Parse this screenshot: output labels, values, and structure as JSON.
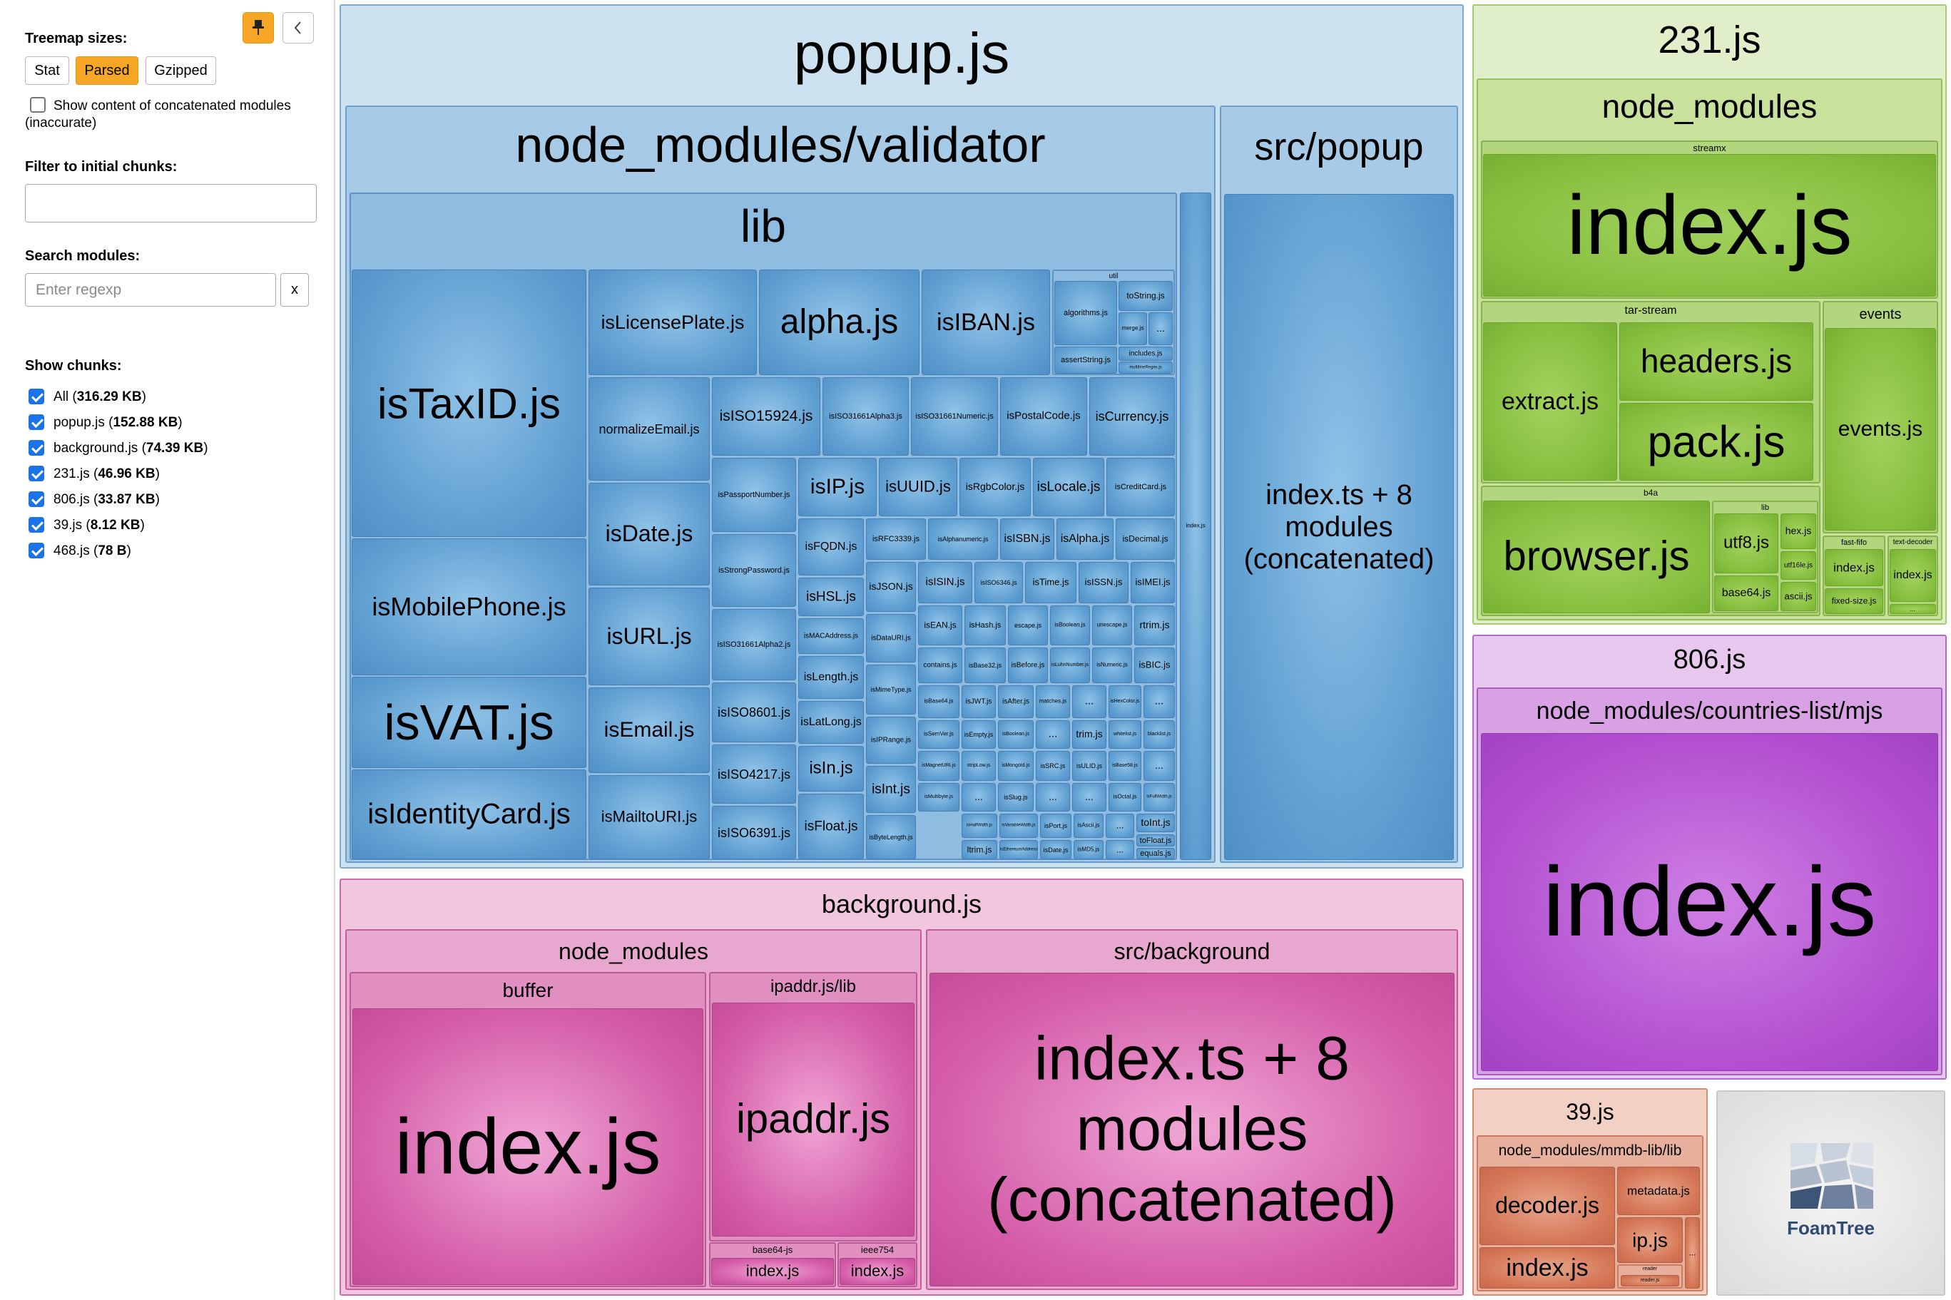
{
  "sidebar": {
    "treemap_sizes_title": "Treemap sizes:",
    "size_buttons": [
      {
        "label": "Stat",
        "active": false
      },
      {
        "label": "Parsed",
        "active": true
      },
      {
        "label": "Gzipped",
        "active": false
      }
    ],
    "pin_icon": "pin-icon",
    "collapse_icon": "chevron-left-icon",
    "concat_checkbox_label": "Show content of concatenated modules",
    "concat_checkbox_note": "(inaccurate)",
    "filter_title": "Filter to initial chunks:",
    "filter_value": "",
    "search_title": "Search modules:",
    "search_placeholder": "Enter regexp",
    "search_clear_label": "x",
    "show_chunks_title": "Show chunks:",
    "chunks": [
      {
        "name": "All",
        "size": "316.29 KB",
        "checked": true
      },
      {
        "name": "popup.js",
        "size": "152.88 KB",
        "checked": true
      },
      {
        "name": "background.js",
        "size": "74.39 KB",
        "checked": true
      },
      {
        "name": "231.js",
        "size": "46.96 KB",
        "checked": true
      },
      {
        "name": "806.js",
        "size": "33.87 KB",
        "checked": true
      },
      {
        "name": "39.js",
        "size": "8.12 KB",
        "checked": true
      },
      {
        "name": "468.js",
        "size": "78 B",
        "checked": true
      }
    ]
  },
  "treemap": {
    "popup": {
      "title": "popup.js",
      "validator": "node_modules/validator",
      "lib": "lib",
      "util": "util",
      "index_small": "index.js",
      "src_popup": "src/popup",
      "src_popup_index": "index.ts + 8 modules (concatenated)",
      "big": [
        "isTaxID.js",
        "isMobilePhone.js",
        "isVAT.js",
        "isIdentityCard.js"
      ],
      "col2": [
        "isLicensePlate.js",
        "normalizeEmail.js",
        "isDate.js",
        "isURL.js",
        "isEmail.js",
        "isMailtoURI.js"
      ],
      "top_row": [
        "alpha.js",
        "isIBAN.js"
      ],
      "util_items": [
        "algorithms.js",
        "toString.js",
        "merge.js",
        "...",
        "assertString.js",
        "includes.js",
        "multilineRegex.js"
      ],
      "row2": [
        "isISO15924.js",
        "isISO31661Alpha3.js",
        "isISO31661Numeric.js",
        "isPostalCode.js",
        "isCurrency.js"
      ],
      "col3": [
        "isPassportNumber.js",
        "isStrongPassword.js",
        "isISO31661Alpha2.js",
        "isISO8601.js",
        "isISO4217.js",
        "isISO6391.js"
      ],
      "row3": [
        "isIP.js",
        "isUUID.js",
        "isRgbColor.js",
        "isLocale.js",
        "isCreditCard.js"
      ],
      "col4": [
        "isFQDN.js",
        "isHSL.js",
        "isMACAddress.js",
        "isLength.js",
        "isLatLong.js",
        "isIn.js",
        "isFloat.js"
      ],
      "col5": [
        "isRFC3339.js",
        "isJSON.js",
        "isDataURI.js",
        "isMimeType.js",
        "isIPRange.js",
        "isInt.js",
        "isByteLength.js"
      ],
      "r4": [
        "isAlphanumeric.js",
        "isISBN.js",
        "isAlpha.js",
        "isDecimal.js"
      ],
      "r5": [
        "isISIN.js",
        "isISO6346.js",
        "isTime.js",
        "isISSN.js",
        "isIMEI.js"
      ],
      "r6": [
        "isEAN.js",
        "isHash.js",
        "escape.js",
        "isBoolean.js",
        "unescape.js",
        "rtrim.js"
      ],
      "r7": [
        "contains.js",
        "isBase32.js",
        "isBefore.js",
        "isLuhnNumber.js",
        "isNumeric.js",
        "isBIC.js"
      ],
      "r8": [
        "isBase64.js",
        "isJWT.js",
        "isAfter.js",
        "matches.js",
        "...",
        "isHexColor.js",
        "..."
      ],
      "r9": [
        "isSemVer.js",
        "isEmpty.js",
        "isBoolean.js",
        "...",
        "trim.js",
        "whitelist.js",
        "blacklist.js"
      ],
      "r10": [
        "isMagnetURI.js",
        "stripLow.js",
        "isMongoId.js",
        "isSRC.js",
        "isULID.js",
        "isBase58.js",
        "..."
      ],
      "r11": [
        "isMultibyte.js",
        "...",
        "isSlug.js",
        "...",
        "...",
        "isOctal.js",
        "isFullWidth.js"
      ],
      "r12": [
        "isHalfWidth.js",
        "isVariableWidth.js",
        "isPort.js",
        "isAscii.js",
        "...",
        "toInt.js"
      ],
      "r13": [
        "ltrim.js",
        "isEthereumAddress.js",
        "isDate.js",
        "isMD5.js",
        "...",
        "toFloat.js",
        "equals.js"
      ]
    },
    "background": {
      "title": "background.js",
      "node_modules": "node_modules",
      "buffer": "buffer",
      "buffer_index": "index.js",
      "ipaddr_lib": "ipaddr.js/lib",
      "ipaddr": "ipaddr.js",
      "base64": "base64-js",
      "base64_index": "index.js",
      "ieee": "ieee754",
      "ieee_index": "index.js",
      "src_background": "src/background",
      "src_background_index": "index.ts + 8 modules (concatenated)"
    },
    "c231": {
      "title": "231.js",
      "node_modules": "node_modules",
      "streamx": "streamx",
      "streamx_index": "index.js",
      "tar_stream": "tar-stream",
      "extract": "extract.js",
      "headers": "headers.js",
      "pack": "pack.js",
      "events_dir": "events",
      "events": "events.js",
      "b4a": "b4a",
      "browser": "browser.js",
      "lib": "lib",
      "utf8": "utf8.js",
      "hex": "hex.js",
      "utf16le": "utf16le.js",
      "base64": "base64.js",
      "ascii": "ascii.js",
      "fast_fifo": "fast-fifo",
      "ff_index": "index.js",
      "fixed_size": "fixed-size.js",
      "text_decoder": "text-decoder",
      "td_index": "index.js",
      "td_more": "..."
    },
    "c806": {
      "title": "806.js",
      "countries": "node_modules/countries-list/mjs",
      "index": "index.js"
    },
    "c39": {
      "title": "39.js",
      "mmdb": "node_modules/mmdb-lib/lib",
      "decoder": "decoder.js",
      "index": "index.js",
      "metadata": "metadata.js",
      "ip": "ip.js",
      "reader": "reader",
      "reader_index": "reader.js",
      "more": "..."
    },
    "foamtree": {
      "logo_text": "FoamTree",
      "logo_icon": "foamtree-logo-icon"
    }
  }
}
